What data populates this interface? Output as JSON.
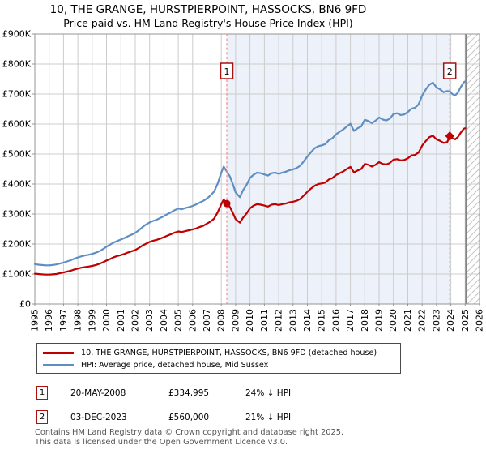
{
  "title": "10, THE GRANGE, HURSTPIERPOINT, HASSOCKS, BN6 9FD",
  "subtitle": "Price paid vs. HM Land Registry's House Price Index (HPI)",
  "colors": {
    "red": "#c00000",
    "blue": "#5f8ec3",
    "shade": "#edf1f9",
    "grid": "#cccccc",
    "border": "#949494",
    "dashed": "#f09090",
    "sale_box_border": "#aa1111",
    "hatch_line": "#c4c4c4",
    "hatch_edge": "#7d7d7d",
    "footer_text": "#555555"
  },
  "chart_data": {
    "type": "line",
    "x_range": [
      1995,
      2026
    ],
    "ylim": [
      0,
      900
    ],
    "values_unit": "GBP thousands",
    "grid": true,
    "legend_position": "bottom",
    "xtick_years": [
      1995,
      1996,
      1997,
      1998,
      1999,
      2000,
      2001,
      2002,
      2003,
      2004,
      2005,
      2006,
      2007,
      2008,
      2009,
      2010,
      2011,
      2012,
      2013,
      2014,
      2015,
      2016,
      2017,
      2018,
      2019,
      2020,
      2021,
      2022,
      2023,
      2024,
      2025,
      2026
    ],
    "ytick_values": [
      0,
      100,
      200,
      300,
      400,
      500,
      600,
      700,
      800,
      900
    ],
    "ytick_labels": [
      "£0",
      "£100K",
      "£200K",
      "£300K",
      "£400K",
      "£500K",
      "£600K",
      "£700K",
      "£800K",
      "£900K"
    ],
    "shaded_span": {
      "from": 2008.38,
      "to": 2023.92
    },
    "future_span": {
      "from": 2025.05,
      "to": 2026
    },
    "series": [
      {
        "id": "property",
        "name": "10, THE GRANGE, HURSTPIERPOINT, HASSOCKS, BN6 9FD (detached house)",
        "color": "#c00000",
        "points": [
          [
            1995,
            101
          ],
          [
            1995.25,
            100
          ],
          [
            1995.5,
            99
          ],
          [
            1995.75,
            98
          ],
          [
            1996,
            98
          ],
          [
            1996.25,
            99
          ],
          [
            1996.5,
            100
          ],
          [
            1996.75,
            103
          ],
          [
            1997,
            105
          ],
          [
            1997.25,
            108
          ],
          [
            1997.5,
            111
          ],
          [
            1997.75,
            115
          ],
          [
            1998,
            118
          ],
          [
            1998.25,
            121
          ],
          [
            1998.5,
            123
          ],
          [
            1998.75,
            125
          ],
          [
            1999,
            127
          ],
          [
            1999.25,
            130
          ],
          [
            1999.5,
            134
          ],
          [
            1999.75,
            139
          ],
          [
            2000,
            145
          ],
          [
            2000.25,
            150
          ],
          [
            2000.5,
            156
          ],
          [
            2000.75,
            160
          ],
          [
            2001,
            163
          ],
          [
            2001.25,
            167
          ],
          [
            2001.5,
            172
          ],
          [
            2001.75,
            176
          ],
          [
            2002,
            180
          ],
          [
            2002.25,
            187
          ],
          [
            2002.5,
            195
          ],
          [
            2002.75,
            201
          ],
          [
            2003,
            207
          ],
          [
            2003.25,
            211
          ],
          [
            2003.5,
            214
          ],
          [
            2003.75,
            218
          ],
          [
            2004,
            223
          ],
          [
            2004.25,
            228
          ],
          [
            2004.5,
            233
          ],
          [
            2004.75,
            238
          ],
          [
            2005,
            242
          ],
          [
            2005.25,
            240
          ],
          [
            2005.5,
            243
          ],
          [
            2005.75,
            246
          ],
          [
            2006,
            249
          ],
          [
            2006.25,
            252
          ],
          [
            2006.5,
            257
          ],
          [
            2006.75,
            261
          ],
          [
            2007,
            268
          ],
          [
            2007.25,
            275
          ],
          [
            2007.5,
            285
          ],
          [
            2007.75,
            306
          ],
          [
            2008,
            333
          ],
          [
            2008.17,
            348
          ],
          [
            2008.38,
            335
          ],
          [
            2008.6,
            323
          ],
          [
            2008.8,
            304
          ],
          [
            2009,
            283
          ],
          [
            2009.3,
            271
          ],
          [
            2009.5,
            287
          ],
          [
            2009.75,
            301
          ],
          [
            2010,
            319
          ],
          [
            2010.25,
            328
          ],
          [
            2010.5,
            333
          ],
          [
            2010.75,
            331
          ],
          [
            2011,
            328
          ],
          [
            2011.25,
            325
          ],
          [
            2011.5,
            331
          ],
          [
            2011.75,
            333
          ],
          [
            2012,
            330
          ],
          [
            2012.25,
            333
          ],
          [
            2012.5,
            335
          ],
          [
            2012.75,
            339
          ],
          [
            2013,
            341
          ],
          [
            2013.25,
            344
          ],
          [
            2013.5,
            350
          ],
          [
            2013.75,
            362
          ],
          [
            2014,
            374
          ],
          [
            2014.25,
            385
          ],
          [
            2014.5,
            394
          ],
          [
            2014.75,
            400
          ],
          [
            2015,
            402
          ],
          [
            2015.25,
            405
          ],
          [
            2015.5,
            415
          ],
          [
            2015.75,
            420
          ],
          [
            2016,
            430
          ],
          [
            2016.25,
            436
          ],
          [
            2016.5,
            442
          ],
          [
            2016.75,
            450
          ],
          [
            2017,
            457
          ],
          [
            2017.25,
            439
          ],
          [
            2017.5,
            445
          ],
          [
            2017.75,
            450
          ],
          [
            2018,
            467
          ],
          [
            2018.25,
            464
          ],
          [
            2018.5,
            458
          ],
          [
            2018.75,
            464
          ],
          [
            2019,
            473
          ],
          [
            2019.25,
            467
          ],
          [
            2019.5,
            465
          ],
          [
            2019.75,
            470
          ],
          [
            2020,
            481
          ],
          [
            2020.25,
            483
          ],
          [
            2020.5,
            479
          ],
          [
            2020.75,
            480
          ],
          [
            2021,
            486
          ],
          [
            2021.25,
            495
          ],
          [
            2021.5,
            497
          ],
          [
            2021.75,
            505
          ],
          [
            2022,
            528
          ],
          [
            2022.25,
            543
          ],
          [
            2022.5,
            556
          ],
          [
            2022.75,
            561
          ],
          [
            2023,
            549
          ],
          [
            2023.25,
            544
          ],
          [
            2023.5,
            537
          ],
          [
            2023.75,
            540
          ],
          [
            2023.92,
            560
          ],
          [
            2024.1,
            553
          ],
          [
            2024.3,
            549
          ],
          [
            2024.5,
            557
          ],
          [
            2024.7,
            572
          ],
          [
            2024.9,
            584
          ],
          [
            2025,
            586
          ]
        ]
      },
      {
        "id": "hpi",
        "name": "HPI: Average price, detached house, Mid Sussex",
        "color": "#5f8ec3",
        "points": [
          [
            1995,
            133
          ],
          [
            1995.25,
            131
          ],
          [
            1995.5,
            130
          ],
          [
            1995.75,
            129
          ],
          [
            1996,
            129
          ],
          [
            1996.25,
            130
          ],
          [
            1996.5,
            132
          ],
          [
            1996.75,
            135
          ],
          [
            1997,
            138
          ],
          [
            1997.25,
            142
          ],
          [
            1997.5,
            146
          ],
          [
            1997.75,
            151
          ],
          [
            1998,
            155
          ],
          [
            1998.25,
            159
          ],
          [
            1998.5,
            162
          ],
          [
            1998.75,
            164
          ],
          [
            1999,
            167
          ],
          [
            1999.25,
            171
          ],
          [
            1999.5,
            176
          ],
          [
            1999.75,
            183
          ],
          [
            2000,
            191
          ],
          [
            2000.25,
            198
          ],
          [
            2000.5,
            205
          ],
          [
            2000.75,
            210
          ],
          [
            2001,
            215
          ],
          [
            2001.25,
            220
          ],
          [
            2001.5,
            226
          ],
          [
            2001.75,
            231
          ],
          [
            2002,
            237
          ],
          [
            2002.25,
            246
          ],
          [
            2002.5,
            256
          ],
          [
            2002.75,
            265
          ],
          [
            2003,
            272
          ],
          [
            2003.25,
            277
          ],
          [
            2003.5,
            281
          ],
          [
            2003.75,
            287
          ],
          [
            2004,
            293
          ],
          [
            2004.25,
            300
          ],
          [
            2004.5,
            306
          ],
          [
            2004.75,
            313
          ],
          [
            2005,
            318
          ],
          [
            2005.25,
            316
          ],
          [
            2005.5,
            320
          ],
          [
            2005.75,
            323
          ],
          [
            2006,
            327
          ],
          [
            2006.25,
            332
          ],
          [
            2006.5,
            338
          ],
          [
            2006.75,
            344
          ],
          [
            2007,
            352
          ],
          [
            2007.25,
            362
          ],
          [
            2007.5,
            375
          ],
          [
            2007.75,
            402
          ],
          [
            2008,
            438
          ],
          [
            2008.17,
            458
          ],
          [
            2008.38,
            441
          ],
          [
            2008.6,
            425
          ],
          [
            2008.8,
            400
          ],
          [
            2009,
            372
          ],
          [
            2009.3,
            356
          ],
          [
            2009.5,
            378
          ],
          [
            2009.75,
            396
          ],
          [
            2010,
            420
          ],
          [
            2010.25,
            431
          ],
          [
            2010.5,
            438
          ],
          [
            2010.75,
            436
          ],
          [
            2011,
            432
          ],
          [
            2011.25,
            428
          ],
          [
            2011.5,
            436
          ],
          [
            2011.75,
            438
          ],
          [
            2012,
            434
          ],
          [
            2012.25,
            438
          ],
          [
            2012.5,
            441
          ],
          [
            2012.75,
            446
          ],
          [
            2013,
            449
          ],
          [
            2013.25,
            453
          ],
          [
            2013.5,
            461
          ],
          [
            2013.75,
            476
          ],
          [
            2014,
            492
          ],
          [
            2014.25,
            506
          ],
          [
            2014.5,
            519
          ],
          [
            2014.75,
            526
          ],
          [
            2015,
            529
          ],
          [
            2015.25,
            533
          ],
          [
            2015.5,
            546
          ],
          [
            2015.75,
            553
          ],
          [
            2016,
            566
          ],
          [
            2016.25,
            574
          ],
          [
            2016.5,
            582
          ],
          [
            2016.75,
            592
          ],
          [
            2017,
            601
          ],
          [
            2017.25,
            577
          ],
          [
            2017.5,
            586
          ],
          [
            2017.75,
            592
          ],
          [
            2018,
            614
          ],
          [
            2018.25,
            610
          ],
          [
            2018.5,
            603
          ],
          [
            2018.75,
            611
          ],
          [
            2019,
            622
          ],
          [
            2019.25,
            615
          ],
          [
            2019.5,
            612
          ],
          [
            2019.75,
            618
          ],
          [
            2020,
            633
          ],
          [
            2020.25,
            636
          ],
          [
            2020.5,
            630
          ],
          [
            2020.75,
            632
          ],
          [
            2021,
            640
          ],
          [
            2021.25,
            651
          ],
          [
            2021.5,
            654
          ],
          [
            2021.75,
            665
          ],
          [
            2022,
            695
          ],
          [
            2022.25,
            715
          ],
          [
            2022.5,
            731
          ],
          [
            2022.75,
            738
          ],
          [
            2023,
            722
          ],
          [
            2023.25,
            716
          ],
          [
            2023.5,
            706
          ],
          [
            2023.75,
            710
          ],
          [
            2023.92,
            709
          ],
          [
            2024.1,
            700
          ],
          [
            2024.3,
            695
          ],
          [
            2024.5,
            705
          ],
          [
            2024.7,
            724
          ],
          [
            2024.9,
            739
          ],
          [
            2025,
            742
          ]
        ]
      }
    ],
    "sales": [
      {
        "index": "1",
        "date": "20-MAY-2008",
        "year": 2008.38,
        "price_k": 335,
        "price_label": "£334,995",
        "vs_hpi": "24% ↓ HPI",
        "marker": "circle"
      },
      {
        "index": "2",
        "date": "03-DEC-2023",
        "year": 2023.92,
        "price_k": 560,
        "price_label": "£560,000",
        "vs_hpi": "21% ↓ HPI",
        "marker": "diamond"
      }
    ]
  },
  "footer": {
    "line1": "Contains HM Land Registry data © Crown copyright and database right 2025.",
    "line2": "This data is licensed under the Open Government Licence v3.0."
  }
}
